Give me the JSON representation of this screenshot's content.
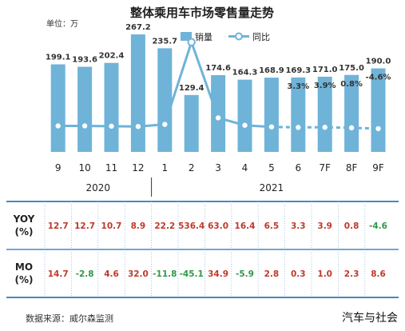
{
  "chart_data": {
    "type": "bar",
    "title": "整体乘用车市场零售量走势",
    "unit_label": "单位：万",
    "categories": [
      "9",
      "10",
      "11",
      "12",
      "1",
      "2",
      "3",
      "4",
      "5",
      "6",
      "7F",
      "8F",
      "9F"
    ],
    "year_groups": [
      {
        "label": "2020",
        "from": 0,
        "to": 3
      },
      {
        "label": "2021",
        "from": 4,
        "to": 12
      }
    ],
    "series": [
      {
        "name": "销量",
        "type": "bar",
        "color": "#6fb3d8",
        "values": [
          199.1,
          193.6,
          202.4,
          267.2,
          235.7,
          129.4,
          174.6,
          164.3,
          168.9,
          169.3,
          171.0,
          175.0,
          190.0
        ],
        "labels": [
          "199.1",
          "193.6",
          "202.4",
          "267.2",
          "235.7",
          "129.4",
          "174.6",
          "164.3",
          "168.9",
          "169.3",
          "171.0",
          "175.0",
          "190.0"
        ]
      },
      {
        "name": "同比",
        "type": "line",
        "color": "#6fb3d8",
        "values": [
          12.7,
          12.7,
          10.7,
          8.9,
          22.2,
          536.4,
          63.0,
          16.4,
          6.5,
          3.3,
          3.9,
          0.8,
          -4.6
        ],
        "dashed_from": 9,
        "point_labels": [
          null,
          null,
          null,
          null,
          null,
          null,
          null,
          null,
          null,
          "3.3%",
          "3.9%",
          "0.8%",
          "-4.6%"
        ]
      }
    ],
    "bar_ylim": [
      0,
      320
    ],
    "table": {
      "rows": [
        {
          "label": "YOY\n(%)",
          "label_lines": [
            "YOY",
            "(%)"
          ],
          "values": [
            "12.7",
            "12.7",
            "10.7",
            "8.9",
            "22.2",
            "536.4",
            "63.0",
            "16.4",
            "6.5",
            "3.3",
            "3.9",
            "0.8",
            "-4.6"
          ]
        },
        {
          "label": "MO\n(%)",
          "label_lines": [
            "MO",
            "(%)"
          ],
          "values": [
            "14.7",
            "-2.8",
            "4.6",
            "32.0",
            "-11.8",
            "-45.1",
            "34.9",
            "-5.9",
            "2.8",
            "0.3",
            "1.0",
            "2.3",
            "8.6"
          ]
        }
      ]
    },
    "colors": {
      "positive": "#c0392b",
      "negative": "#2e9a45",
      "bar": "#6fb3d8",
      "divider": "#4a86c5"
    }
  },
  "source": "数据来源：威尔森监测",
  "brand": "汽车与社会"
}
